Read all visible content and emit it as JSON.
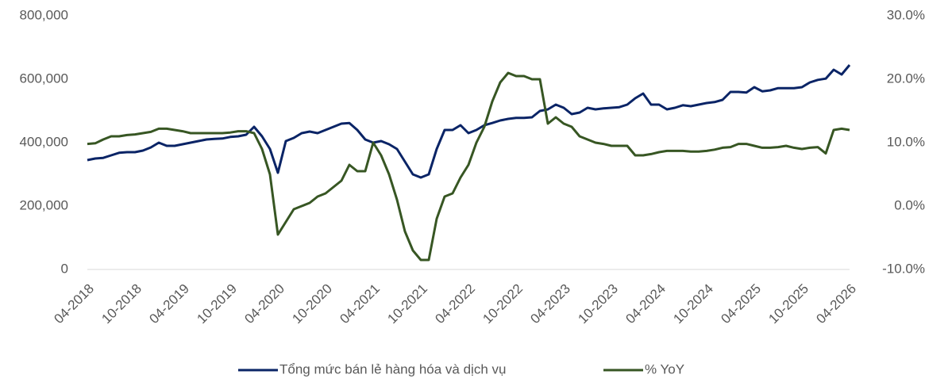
{
  "chart_data": {
    "type": "line",
    "categories": [
      "04-2018",
      null,
      null,
      null,
      null,
      null,
      "10-2018",
      null,
      null,
      null,
      null,
      null,
      "04-2019",
      null,
      null,
      null,
      null,
      null,
      "10-2019",
      null,
      null,
      null,
      null,
      null,
      "04-2020",
      null,
      null,
      null,
      null,
      null,
      "10-2020",
      null,
      null,
      null,
      null,
      null,
      "04-2021",
      null,
      null,
      null,
      null,
      null,
      "10-2021",
      null,
      null,
      null,
      null,
      null,
      "04-2022",
      null,
      null,
      null,
      null,
      null,
      "10-2022",
      null,
      null,
      null,
      null,
      null,
      "04-2023",
      null,
      null,
      null,
      null,
      null,
      "10-2023",
      null,
      null,
      null,
      null,
      null,
      "04-2024",
      null,
      null,
      null,
      null,
      null,
      "10-2024",
      null,
      null,
      null,
      null,
      null,
      "04-2025",
      null,
      null,
      null,
      null,
      null,
      "10-2025",
      null,
      null,
      null,
      null,
      null,
      "04-2026"
    ],
    "series": [
      {
        "name": "Tổng mức bán lẻ hàng hóa và dịch vụ",
        "color": "#0a2466",
        "axis": "y",
        "values": [
          345000,
          350000,
          352000,
          360000,
          368000,
          370000,
          370000,
          375000,
          385000,
          400000,
          390000,
          390000,
          395000,
          400000,
          405000,
          410000,
          412000,
          413000,
          418000,
          420000,
          425000,
          450000,
          420000,
          380000,
          305000,
          405000,
          415000,
          430000,
          435000,
          430000,
          440000,
          450000,
          460000,
          462000,
          440000,
          410000,
          400000,
          405000,
          395000,
          380000,
          340000,
          300000,
          290000,
          300000,
          380000,
          440000,
          440000,
          455000,
          430000,
          440000,
          455000,
          462000,
          470000,
          475000,
          478000,
          478000,
          480000,
          500000,
          505000,
          520000,
          510000,
          490000,
          495000,
          510000,
          505000,
          508000,
          510000,
          512000,
          520000,
          540000,
          555000,
          520000,
          520000,
          505000,
          510000,
          518000,
          515000,
          520000,
          525000,
          528000,
          535000,
          560000,
          560000,
          558000,
          575000,
          562000,
          565000,
          572000,
          572000,
          572000,
          575000,
          590000,
          598000,
          602000,
          630000,
          615000,
          645000
        ]
      },
      {
        "name": "% YoY",
        "color": "#375623",
        "axis": "y2",
        "values": [
          9.8,
          9.9,
          10.5,
          11.0,
          11.0,
          11.2,
          11.3,
          11.5,
          11.7,
          12.2,
          12.2,
          12.0,
          11.8,
          11.5,
          11.5,
          11.5,
          11.5,
          11.5,
          11.6,
          11.8,
          11.8,
          11.5,
          9,
          5,
          -4.5,
          -2.5,
          -0.5,
          0,
          0.5,
          1.5,
          2,
          3,
          4,
          6.5,
          5.5,
          5.5,
          10,
          8,
          5,
          1,
          -4,
          -7,
          -8.5,
          -8.5,
          -2,
          1.5,
          2,
          4.5,
          6.5,
          10,
          12.5,
          16.5,
          19.5,
          21,
          20.5,
          20.5,
          20,
          20,
          13,
          14,
          13,
          12.5,
          11,
          10.5,
          10,
          9.8,
          9.5,
          9.5,
          9.5,
          8,
          8,
          8.2,
          8.5,
          8.7,
          8.7,
          8.7,
          8.6,
          8.6,
          8.7,
          8.9,
          9.2,
          9.3,
          9.8,
          9.8,
          9.5,
          9.2,
          9.2,
          9.3,
          9.5,
          9.2,
          9.0,
          9.2,
          9.3,
          8.3,
          12,
          12.2,
          12
        ]
      }
    ],
    "ylim": [
      0,
      800000
    ],
    "yticks": [
      0,
      {
        "value": 200000,
        "label": "200,000"
      },
      {
        "value": 400000,
        "label": "400,000"
      },
      {
        "value": 600000,
        "label": "600,000"
      },
      {
        "value": 800000,
        "label": "800,000"
      }
    ],
    "y2lim": [
      -10,
      30
    ],
    "y2ticks": [
      {
        "value": -10,
        "label": "-10.0%"
      },
      {
        "value": 0,
        "label": "0.0%"
      },
      {
        "value": 10,
        "label": "10.0%"
      },
      {
        "value": 20,
        "label": "20.0%"
      },
      {
        "value": 30,
        "label": "30.0%"
      }
    ],
    "legend": "bottom"
  }
}
